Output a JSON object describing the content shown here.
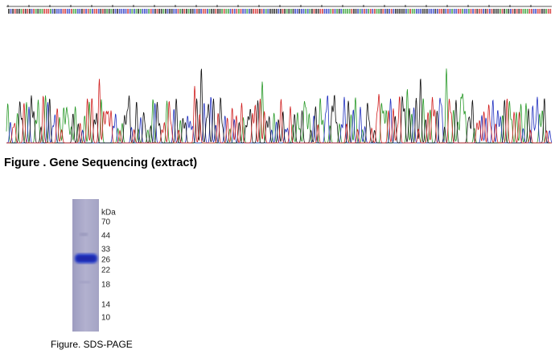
{
  "sequencing": {
    "caption": "Figure . Gene Sequencing (extract)"
  },
  "gel": {
    "caption": "Figure. SDS-PAGE",
    "unit": "kDa",
    "markers": [
      70,
      44,
      33,
      26,
      22,
      18,
      14,
      10
    ]
  }
}
